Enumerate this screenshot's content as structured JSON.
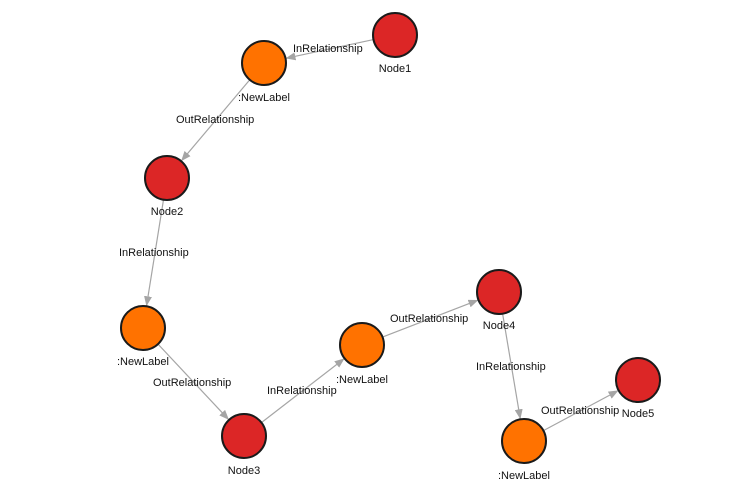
{
  "colors": {
    "named_node": "#dc2626",
    "label_node": "#ff7200",
    "node_stroke": "#1a1a1a",
    "edge": "#a5a5a5",
    "text": "#111111"
  },
  "graph": {
    "nodes": [
      {
        "id": "node1",
        "label": "Node1",
        "kind": "named_node"
      },
      {
        "id": "label1",
        "label": ":NewLabel",
        "kind": "label_node"
      },
      {
        "id": "node2",
        "label": "Node2",
        "kind": "named_node"
      },
      {
        "id": "label2",
        "label": ":NewLabel",
        "kind": "label_node"
      },
      {
        "id": "node3",
        "label": "Node3",
        "kind": "named_node"
      },
      {
        "id": "label3",
        "label": ":NewLabel",
        "kind": "label_node"
      },
      {
        "id": "node4",
        "label": "Node4",
        "kind": "named_node"
      },
      {
        "id": "label4",
        "label": ":NewLabel",
        "kind": "label_node"
      },
      {
        "id": "node5",
        "label": "Node5",
        "kind": "named_node"
      }
    ],
    "edges": [
      {
        "id": "e1",
        "from": "node1",
        "to": "label1",
        "label": "InRelationship"
      },
      {
        "id": "e2",
        "from": "label1",
        "to": "node2",
        "label": "OutRelationship"
      },
      {
        "id": "e3",
        "from": "node2",
        "to": "label2",
        "label": "InRelationship"
      },
      {
        "id": "e4",
        "from": "label2",
        "to": "node3",
        "label": "OutRelationship"
      },
      {
        "id": "e5",
        "from": "node3",
        "to": "label3",
        "label": "InRelationship"
      },
      {
        "id": "e6",
        "from": "label3",
        "to": "node4",
        "label": "OutRelationship"
      },
      {
        "id": "e7",
        "from": "node4",
        "to": "label4",
        "label": "InRelationship"
      },
      {
        "id": "e8",
        "from": "label4",
        "to": "node5",
        "label": "OutRelationship"
      }
    ]
  }
}
